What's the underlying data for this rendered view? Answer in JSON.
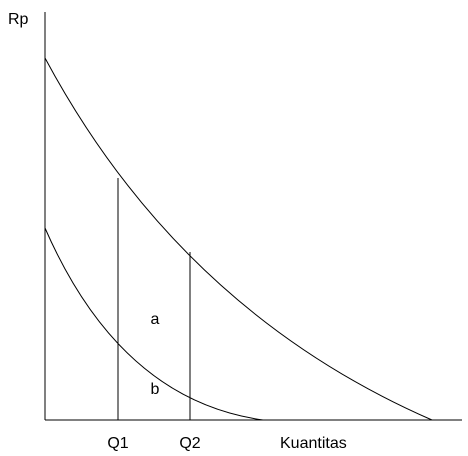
{
  "diagram": {
    "y_axis_label": "Rp",
    "x_axis_label": "Kuantitas",
    "quantity_labels": [
      "Q1",
      "Q2"
    ],
    "region_labels": [
      "a",
      "b"
    ],
    "curves": [
      "upper-demand-curve",
      "lower-demand-curve"
    ]
  }
}
